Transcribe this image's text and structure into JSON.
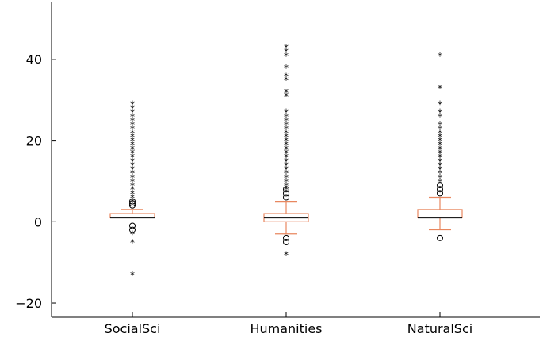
{
  "chart_data": {
    "type": "box",
    "title": "",
    "xlabel": "",
    "ylabel": "",
    "categories": [
      "SocialSci",
      "Humanities",
      "NaturalSci"
    ],
    "ylim": [
      -23.5,
      54
    ],
    "yticks": [
      -20,
      0,
      20,
      40
    ],
    "grid": false,
    "legend": "none",
    "box_color": "#e8875f",
    "median_color": "#000000",
    "boxes": [
      {
        "category": "SocialSci",
        "q1": 1,
        "median": 1,
        "q3": 2,
        "whisker_low": 1,
        "whisker_high": 3,
        "outliers_mild": [
          4,
          4.5,
          5,
          -1,
          -2
        ],
        "outliers_extreme": [
          5,
          6,
          7,
          8,
          9,
          10,
          11,
          12,
          13,
          14,
          15,
          16,
          17,
          18,
          19,
          20,
          21,
          22,
          23,
          24,
          25,
          26,
          27,
          28,
          29,
          -3,
          -5,
          -13
        ]
      },
      {
        "category": "Humanities",
        "q1": 0,
        "median": 1,
        "q3": 2,
        "whisker_low": -3,
        "whisker_high": 5,
        "outliers_mild": [
          6,
          7,
          8,
          -4,
          -5
        ],
        "outliers_extreme": [
          8,
          9,
          10,
          11,
          12,
          13,
          14,
          15,
          16,
          17,
          18,
          19,
          20,
          21,
          22,
          23,
          24,
          25,
          26,
          27,
          31,
          32,
          35,
          36,
          38,
          41,
          42,
          43,
          -8
        ]
      },
      {
        "category": "NaturalSci",
        "q1": 1,
        "median": 1,
        "q3": 3,
        "whisker_low": -2,
        "whisker_high": 6,
        "outliers_mild": [
          7,
          8,
          9,
          -4
        ],
        "outliers_extreme": [
          10,
          11,
          12,
          13,
          14,
          15,
          16,
          17,
          18,
          19,
          20,
          21,
          22,
          23,
          24,
          26,
          27,
          29,
          33,
          41
        ]
      }
    ]
  }
}
